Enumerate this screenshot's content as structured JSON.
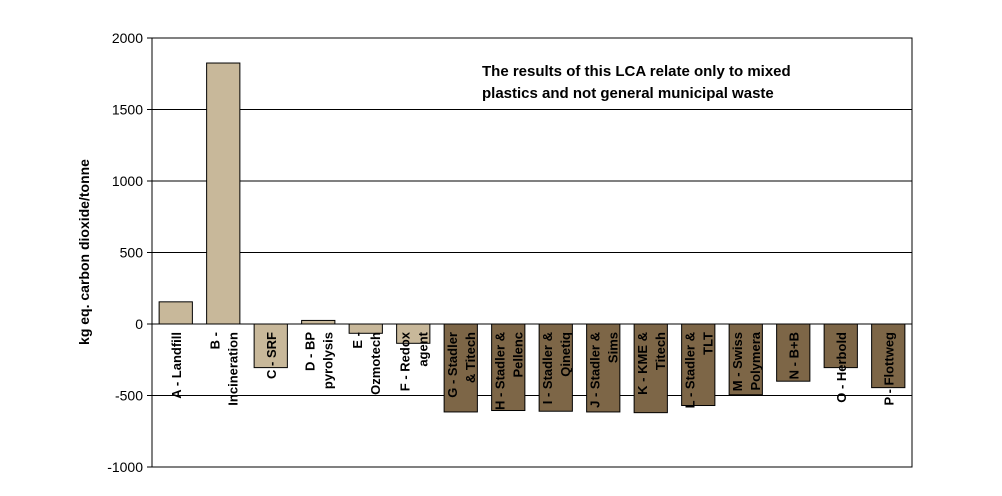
{
  "chart_data": {
    "type": "bar",
    "title": "",
    "xlabel": "",
    "ylabel": "kg eq. carbon dioxide/tonne",
    "ylim": [
      -1000,
      2000
    ],
    "yticks": [
      2000,
      1500,
      1000,
      500,
      0,
      -500,
      -1000
    ],
    "grid": true,
    "annotation": [
      "The results of this LCA relate only to mixed",
      "plastics and not general municipal waste"
    ],
    "colors": {
      "light": "#c8b89a",
      "dark": "#7d6647",
      "edge": "#000000",
      "grid": "#000000"
    },
    "categories": [
      {
        "lines": [
          "A - Landfill"
        ],
        "value": 155,
        "shade": "light"
      },
      {
        "lines": [
          "B -",
          "Incineration"
        ],
        "value": 1825,
        "shade": "light"
      },
      {
        "lines": [
          "C - SRF"
        ],
        "value": -305,
        "shade": "light"
      },
      {
        "lines": [
          "D - BP",
          "pyrolysis"
        ],
        "value": 25,
        "shade": "light"
      },
      {
        "lines": [
          "E -",
          "Ozmotech"
        ],
        "value": -65,
        "shade": "light"
      },
      {
        "lines": [
          "F - Redox",
          "agent"
        ],
        "value": -135,
        "shade": "light"
      },
      {
        "lines": [
          "G - Stadler",
          "& Titech"
        ],
        "value": -615,
        "shade": "dark"
      },
      {
        "lines": [
          "H - Stadler &",
          "Pellenc"
        ],
        "value": -605,
        "shade": "dark"
      },
      {
        "lines": [
          "I - Stadler &",
          "Qinetiq"
        ],
        "value": -610,
        "shade": "dark"
      },
      {
        "lines": [
          "J - Stadler &",
          "Sims"
        ],
        "value": -615,
        "shade": "dark"
      },
      {
        "lines": [
          "K - KME &",
          "Titech"
        ],
        "value": -620,
        "shade": "dark"
      },
      {
        "lines": [
          "L - Stadler &",
          "TLT"
        ],
        "value": -570,
        "shade": "dark"
      },
      {
        "lines": [
          "M - Swiss",
          "Polymera"
        ],
        "value": -495,
        "shade": "dark"
      },
      {
        "lines": [
          "N - B+B"
        ],
        "value": -400,
        "shade": "dark"
      },
      {
        "lines": [
          "O - Herbold"
        ],
        "value": -305,
        "shade": "dark"
      },
      {
        "lines": [
          "P - Flottweg"
        ],
        "value": -445,
        "shade": "dark"
      }
    ]
  }
}
